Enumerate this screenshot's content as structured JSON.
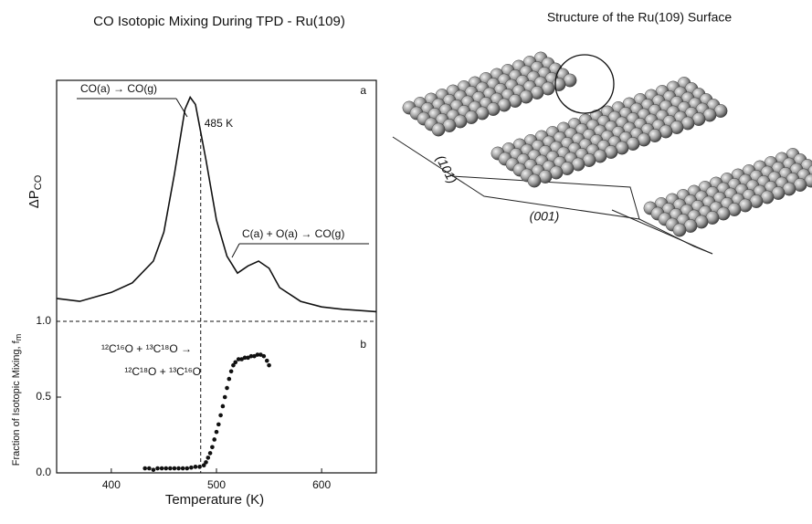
{
  "chart_data": [
    {
      "type": "line",
      "title": "CO Isotopic Mixing During TPD - Ru(109)",
      "panel": "a",
      "ylabel": "ΔP",
      "ylabel_sub": "CO",
      "xlim": [
        348,
        652
      ],
      "ylim": [
        0,
        1
      ],
      "x": [
        348,
        370,
        400,
        420,
        440,
        450,
        460,
        470,
        475,
        480,
        490,
        500,
        510,
        520,
        530,
        540,
        550,
        560,
        580,
        600,
        620,
        652
      ],
      "values": [
        0.095,
        0.083,
        0.12,
        0.16,
        0.25,
        0.37,
        0.61,
        0.88,
        0.93,
        0.9,
        0.67,
        0.42,
        0.27,
        0.2,
        0.23,
        0.25,
        0.22,
        0.14,
        0.083,
        0.06,
        0.05,
        0.04
      ],
      "color": "#111111",
      "vline": 485,
      "vline_label": "485 K",
      "annotations": [
        "CO(a) → CO(g)",
        "C(a) + O(a) → CO(g)"
      ]
    },
    {
      "type": "scatter",
      "panel": "b",
      "xlabel": "Temperature (K)",
      "ylabel": "Fraction of Isotopic Mixing, f",
      "ylabel_sub": "m",
      "xlim": [
        348,
        652
      ],
      "ylim": [
        0,
        1
      ],
      "xticks": [
        400,
        500,
        600
      ],
      "yticks": [
        {
          "value": 0,
          "label": "0.0"
        },
        0.5,
        {
          "value": 1,
          "label": "1.0"
        }
      ],
      "x": [
        432,
        436,
        440,
        444,
        448,
        452,
        456,
        460,
        464,
        468,
        472,
        476,
        480,
        484,
        488,
        490,
        492,
        494,
        496,
        498,
        500,
        502,
        504,
        506,
        508,
        510,
        512,
        514,
        516,
        518,
        521,
        524,
        527,
        530,
        533,
        536,
        539,
        542,
        545,
        548,
        550
      ],
      "values": [
        0.03,
        0.03,
        0.02,
        0.03,
        0.03,
        0.03,
        0.03,
        0.03,
        0.03,
        0.03,
        0.03,
        0.035,
        0.04,
        0.04,
        0.05,
        0.07,
        0.1,
        0.13,
        0.17,
        0.22,
        0.27,
        0.32,
        0.38,
        0.44,
        0.5,
        0.56,
        0.62,
        0.67,
        0.71,
        0.73,
        0.75,
        0.75,
        0.76,
        0.76,
        0.77,
        0.77,
        0.78,
        0.78,
        0.77,
        0.74,
        0.71
      ],
      "color": "#111111",
      "annotations": [
        "¹²C¹⁶O + ¹³C¹⁸O →",
        "¹²C¹⁸O + ¹³C¹⁶O"
      ]
    }
  ],
  "illustration": {
    "title": "Structure of the Ru(109) Surface",
    "labels": [
      "(101)",
      "(001)"
    ]
  }
}
